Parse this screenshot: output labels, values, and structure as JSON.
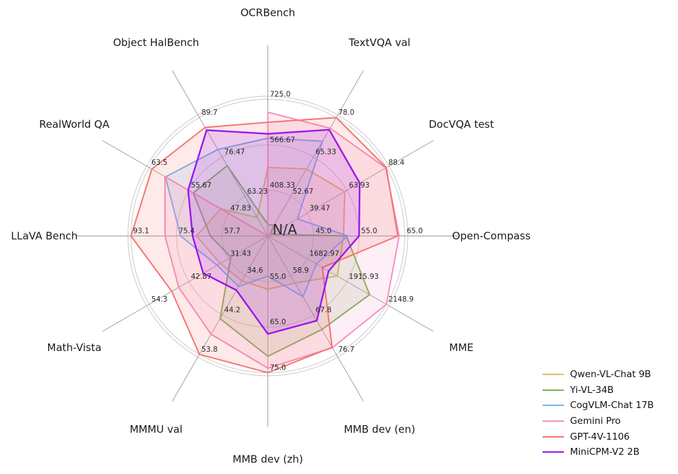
{
  "chart_data": {
    "type": "radar",
    "title": "",
    "axes": [
      {
        "label": "OCRBench",
        "min": 250,
        "max": 725,
        "ticks": [
          "408.33",
          "566.67",
          "725.0"
        ]
      },
      {
        "label": "TextVQA val",
        "min": 40,
        "max": 78,
        "ticks": [
          "52.67",
          "65.33",
          "78.0"
        ]
      },
      {
        "label": "DocVQA test",
        "min": 15,
        "max": 88.4,
        "ticks": [
          "39.47",
          "63.93",
          "88.4"
        ]
      },
      {
        "label": "Open-Compass",
        "min": 35,
        "max": 65,
        "ticks": [
          "45.0",
          "55.0",
          "65.0"
        ]
      },
      {
        "label": "MME",
        "min": 1450,
        "max": 2148.9,
        "ticks": [
          "1682.97",
          "1915.93",
          "2148.9"
        ]
      },
      {
        "label": "MMB dev (en)",
        "min": 50,
        "max": 76.7,
        "ticks": [
          "58.9",
          "67.8",
          "76.7"
        ]
      },
      {
        "label": "MMB dev (zh)",
        "min": 45,
        "max": 75,
        "ticks": [
          "55.0",
          "65.0",
          "75.0"
        ]
      },
      {
        "label": "MMMU val",
        "min": 25,
        "max": 53.8,
        "ticks": [
          "34.6",
          "44.2",
          "53.8"
        ]
      },
      {
        "label": "Math-Vista",
        "min": 20,
        "max": 54.3,
        "ticks": [
          "31.43",
          "42.87",
          "54.3"
        ]
      },
      {
        "label": "LLaVA Bench",
        "min": 40,
        "max": 93.1,
        "ticks": [
          "57.7",
          "75.4",
          "93.1"
        ]
      },
      {
        "label": "RealWorld QA",
        "min": 40,
        "max": 63.5,
        "ticks": [
          "47.83",
          "55.67",
          "63.5"
        ]
      },
      {
        "label": "Object HalBench",
        "min": 50,
        "max": 89.7,
        "ticks": [
          "63.23",
          "76.47",
          "89.7"
        ]
      }
    ],
    "series": [
      {
        "name": "Qwen-VL-Chat 9B",
        "color": "#e2bc66",
        "values": [
          488,
          61.5,
          62.6,
          51.6,
          1860.0,
          60.6,
          56.7,
          35.9,
          33.8,
          67.7,
          49.3,
          56.2
        ]
      },
      {
        "name": "Yi-VL-34B",
        "color": "#7bb153",
        "values": [
          290,
          43.4,
          16.9,
          52.2,
          2050.2,
          71.1,
          71.4,
          45.1,
          30.7,
          62.3,
          54.8,
          73.6
        ]
      },
      {
        "name": "CogVLM-Chat 17B",
        "color": "#74b4f2",
        "values": [
          590,
          70.4,
          33.3,
          52.5,
          1736.6,
          63.7,
          53.8,
          37.3,
          34.7,
          73.9,
          60.3,
          79.0
        ]
      },
      {
        "name": "Gemini Pro",
        "color": "#f78fc1",
        "values": [
          680,
          74.6,
          88.1,
          63.8,
          2148.9,
          75.2,
          74.0,
          48.9,
          45.8,
          79.9,
          60.4,
          "N/A"
        ]
      },
      {
        "name": "GPT-4V-1106",
        "color": "#f4756e",
        "values": [
          645,
          78.0,
          88.4,
          63.5,
          1771.5,
          75.1,
          75.0,
          53.8,
          47.8,
          93.1,
          63.0,
          86.4
        ]
      },
      {
        "name": "MiniCPM-V2 2B",
        "color": "#9a16f0",
        "values": [
          605,
          74.1,
          71.9,
          55.0,
          1808.6,
          69.1,
          66.5,
          38.2,
          38.7,
          69.2,
          55.8,
          85.5
        ]
      }
    ],
    "na_annotation": "N/A",
    "legend_position": "lower right",
    "grid": true,
    "grid_color": "#c9c9c9",
    "spoke_color": "#999999",
    "tick_color": "#262626",
    "label_color": "#1a1a1a",
    "background": "#ffffff"
  }
}
